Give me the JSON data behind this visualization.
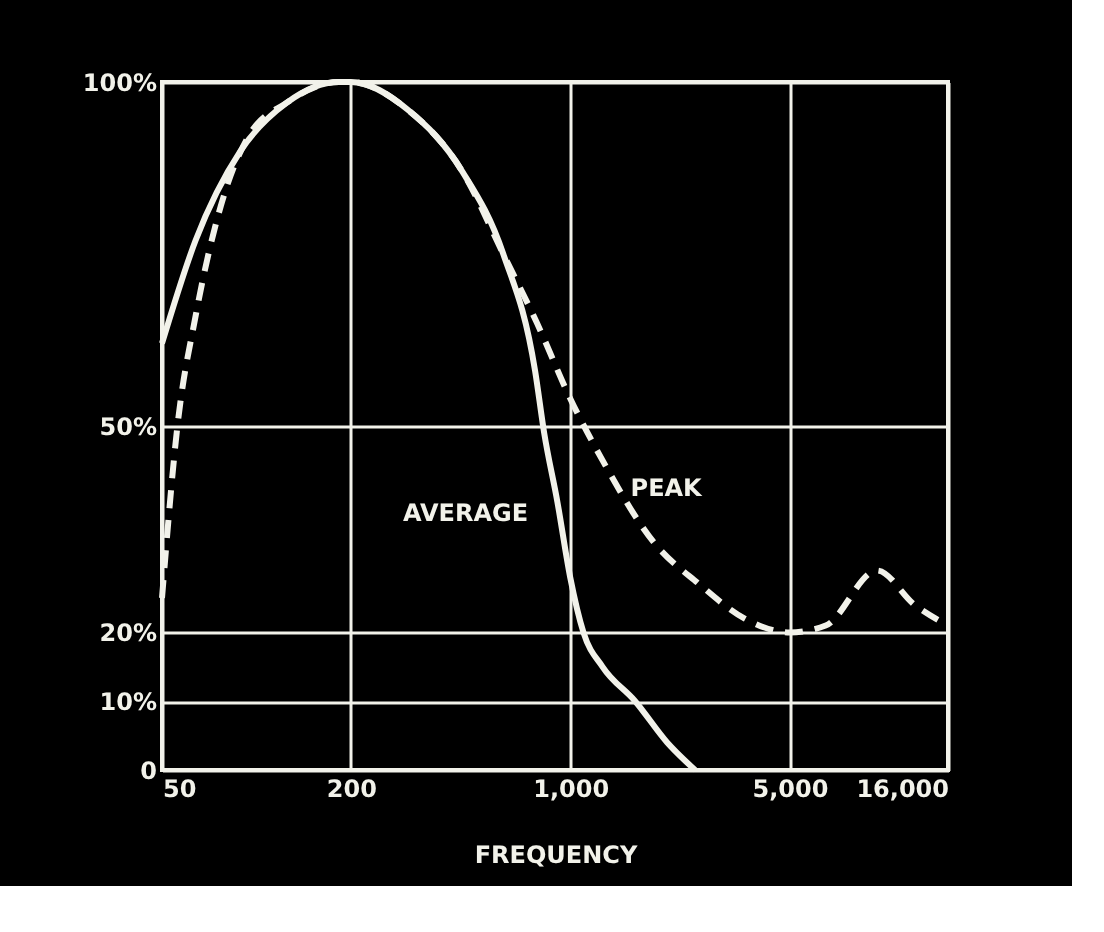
{
  "chart_data": {
    "type": "line",
    "xlabel": "FREQUENCY",
    "log": "x",
    "grid": true,
    "marker": "none",
    "xlim": [
      50,
      16000
    ],
    "xticks": [
      50,
      200,
      {
        "value": 1000,
        "label": "1,000"
      },
      {
        "value": 5000,
        "label": "5,000"
      },
      {
        "value": 16000,
        "label": "16,000"
      }
    ],
    "ylim": [
      0,
      100
    ],
    "yticks": [
      {
        "value": 0,
        "label": "0"
      },
      {
        "value": 10,
        "label": "10%"
      },
      {
        "value": 20,
        "label": "20%"
      },
      {
        "value": 50,
        "label": "50%"
      },
      {
        "value": 100,
        "label": "100%"
      }
    ],
    "series": [
      {
        "name": "AVERAGE",
        "color": "#f2f2ea",
        "line_style": "solid",
        "x": [
          50,
          64,
          89,
          125,
          183,
          200,
          303,
          453,
          612,
          773,
          826,
          910,
          1000,
          1102,
          1268,
          1611,
          2037,
          2500
        ],
        "values": [
          62,
          77,
          90,
          97,
          100,
          100,
          96,
          87,
          75,
          58,
          49,
          39,
          28,
          20,
          15,
          10,
          4,
          0
        ]
      },
      {
        "name": "PEAK",
        "color": "#f2f2ea",
        "line_style": "dashed",
        "x": [
          50,
          56,
          64,
          77,
          94,
          125,
          183,
          200,
          303,
          453,
          612,
          783,
          1000,
          1268,
          1854,
          2580,
          3600,
          5000,
          6520,
          9500,
          12530,
          16000
        ],
        "values": [
          25,
          50,
          66,
          82,
          92,
          97,
          100,
          100,
          96,
          87,
          75,
          65,
          54,
          45,
          33,
          27,
          22,
          20,
          21,
          29,
          24,
          21
        ]
      }
    ]
  }
}
